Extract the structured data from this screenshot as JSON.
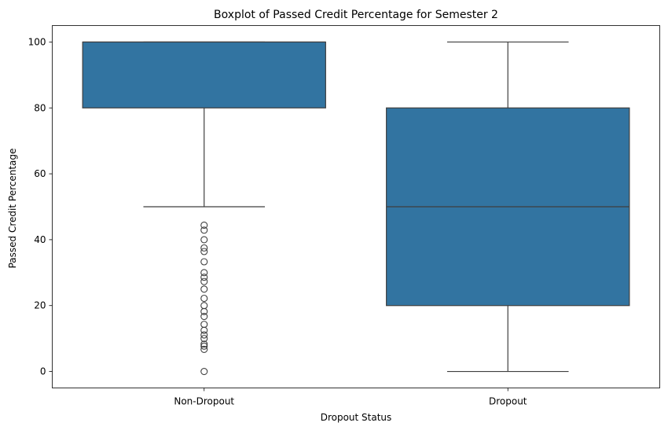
{
  "chart_data": {
    "type": "boxplot",
    "title": "Boxplot of Passed Credit Percentage for Semester 2",
    "xlabel": "Dropout Status",
    "ylabel": "Passed Credit Percentage",
    "ylim": [
      -5,
      105
    ],
    "yticks": [
      0,
      20,
      40,
      60,
      80,
      100
    ],
    "categories": [
      "Non-Dropout",
      "Dropout"
    ],
    "color": "#3274a1",
    "series": [
      {
        "category": "Non-Dropout",
        "whisker_low": 50,
        "q1": 80,
        "median": 100,
        "q3": 100,
        "whisker_high": 100,
        "outliers": [
          0,
          6.7,
          7.7,
          8.3,
          10,
          11.1,
          12.5,
          14.3,
          16.7,
          18.2,
          20,
          22.2,
          25,
          27.3,
          28.6,
          30,
          33.3,
          36.4,
          37.5,
          40,
          42.9,
          44.4
        ]
      },
      {
        "category": "Dropout",
        "whisker_low": 0,
        "q1": 20,
        "median": 50,
        "q3": 80,
        "whisker_high": 100,
        "outliers": []
      }
    ],
    "grid": false
  }
}
